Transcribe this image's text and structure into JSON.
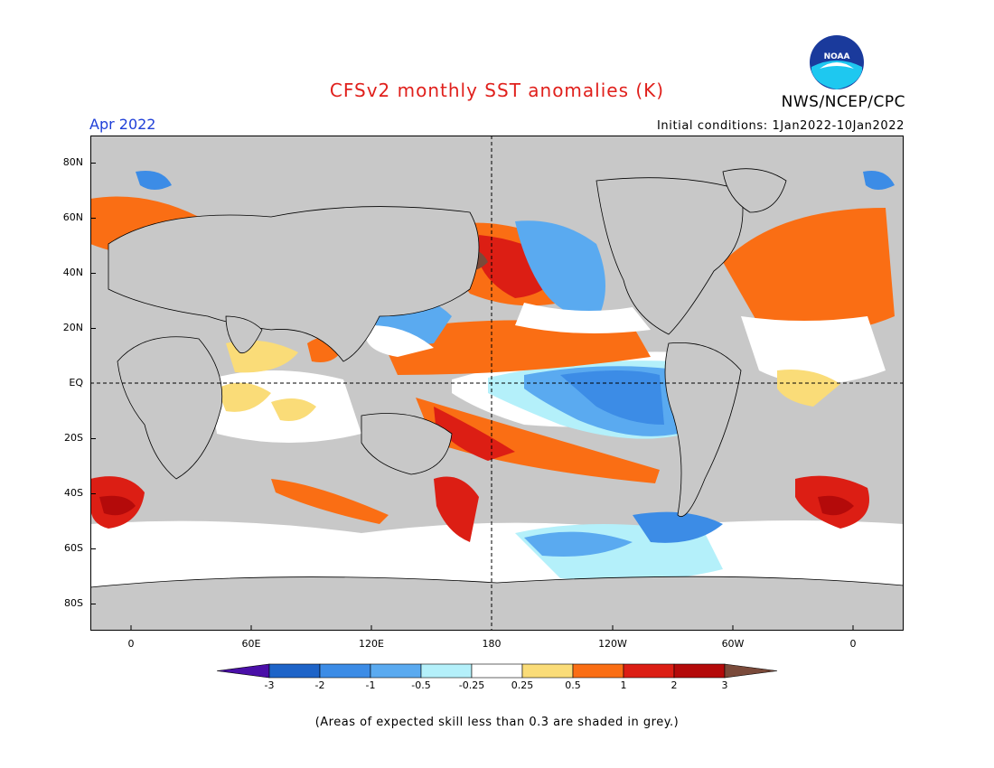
{
  "title": "CFSv2 monthly SST anomalies (K)",
  "organization": "NWS/NCEP/CPC",
  "logo_text": "NOAA",
  "forecast_month": "Apr 2022",
  "initial_conditions": "Initial conditions: 1Jan2022-10Jan2022",
  "latitude_labels": [
    "80N",
    "60N",
    "40N",
    "20N",
    "EQ",
    "20S",
    "40S",
    "60S",
    "80S"
  ],
  "longitude_labels": [
    "0",
    "60E",
    "120E",
    "180",
    "120W",
    "60W",
    "0"
  ],
  "colorbar": {
    "ticks": [
      "-3",
      "-2",
      "-1",
      "-0.5",
      "-0.25",
      "0.25",
      "0.5",
      "1",
      "2",
      "3"
    ],
    "colors": [
      "#4a0fa8",
      "#1e64c8",
      "#3c8ce6",
      "#5aaaf0",
      "#b4f0fa",
      "#ffffff",
      "#fadc78",
      "#fa6e14",
      "#dc1e14",
      "#b40a0a",
      "#7a4a3a"
    ]
  },
  "footnote": "(Areas of expected skill less than 0.3 are shaded in grey.)",
  "colors": {
    "ocean_grey": "#c8c8c8",
    "land": "#c8c8c8",
    "title": "#e0201c",
    "month": "#1f3fd8"
  }
}
